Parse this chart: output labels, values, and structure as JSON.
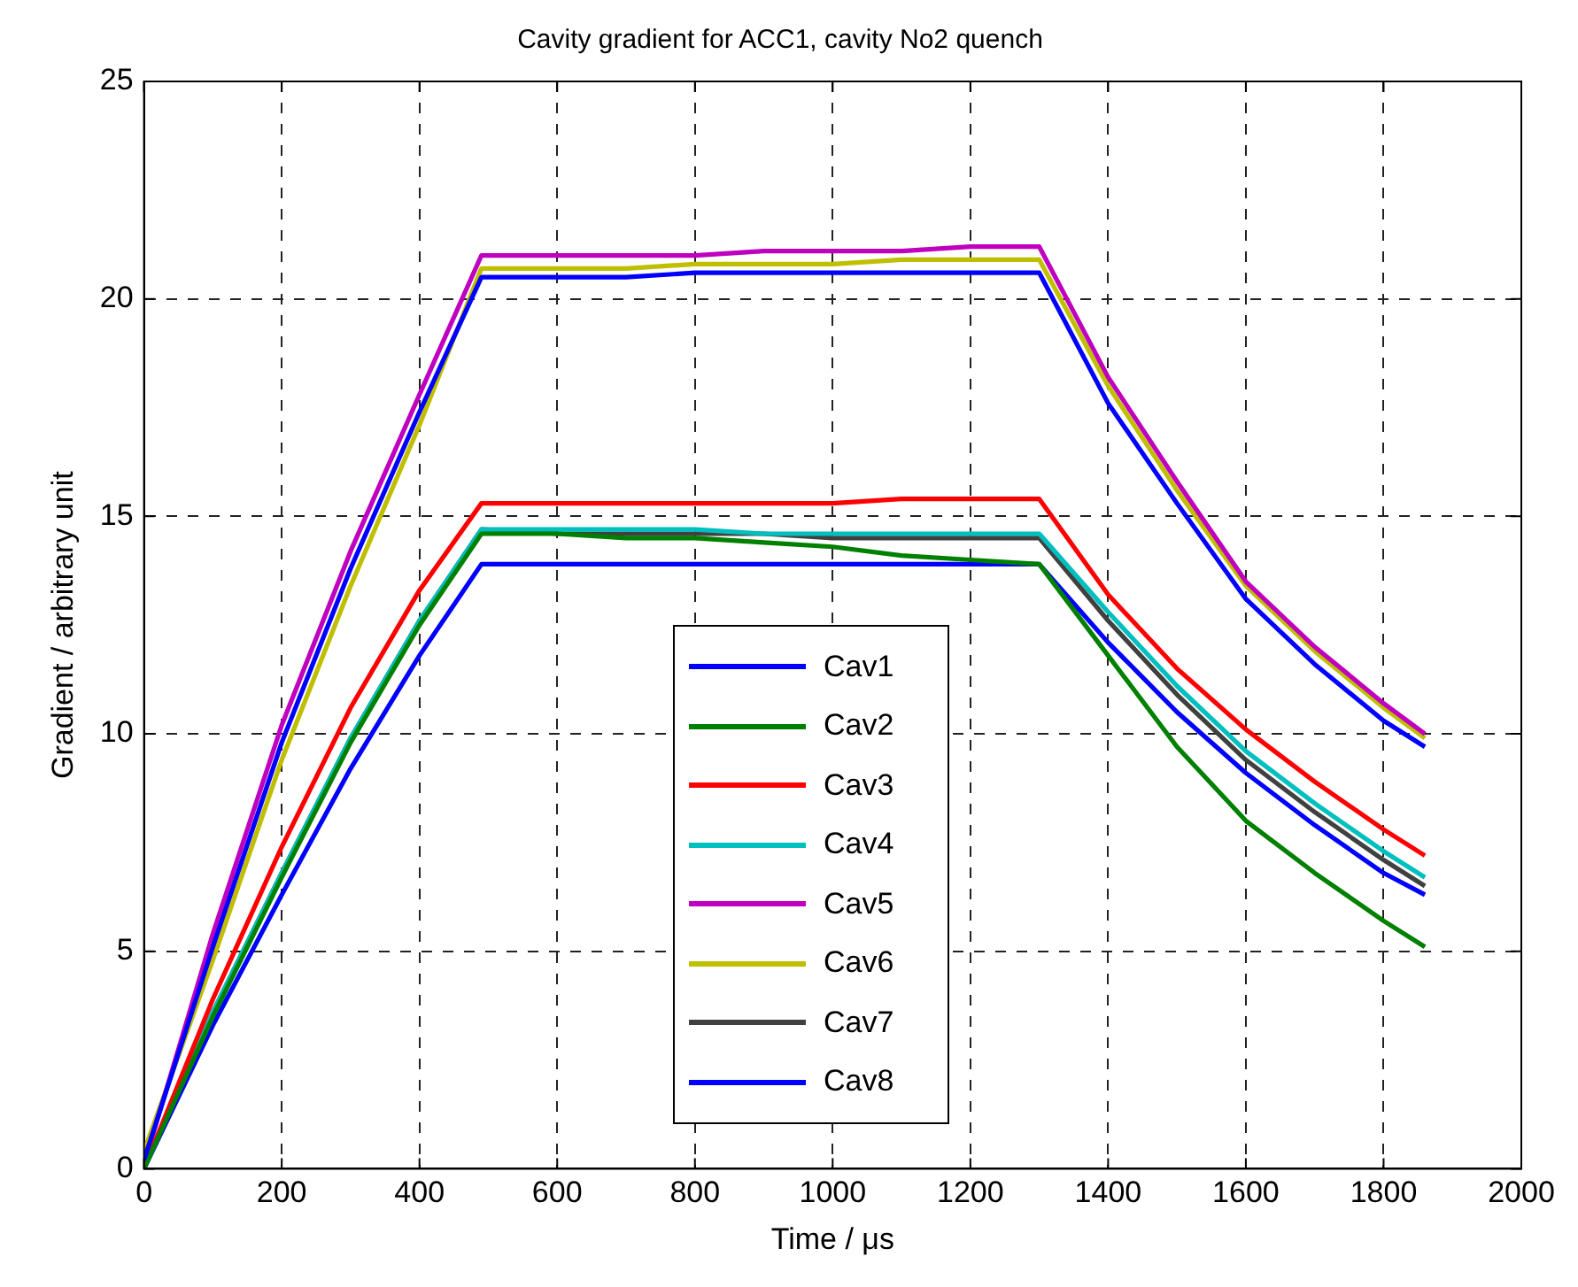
{
  "chart_data": {
    "type": "line",
    "title": "Cavity gradient for ACC1, cavity No2 quench",
    "xlabel": "Time / μs",
    "ylabel": "Gradient / arbitrary unit",
    "x": [
      0,
      100,
      200,
      300,
      400,
      490,
      600,
      700,
      800,
      900,
      1000,
      1100,
      1200,
      1300,
      1400,
      1500,
      1600,
      1700,
      1800,
      1860
    ],
    "xlim": [
      0,
      2000
    ],
    "xticks": [
      0,
      200,
      400,
      600,
      800,
      1000,
      1200,
      1400,
      1600,
      1800,
      2000
    ],
    "ylim": [
      0,
      25
    ],
    "yticks": [
      0,
      5,
      10,
      15,
      20,
      25
    ],
    "grid": true,
    "legend": "bottom",
    "marker": "none",
    "line_style": "solid",
    "series": [
      {
        "name": "Cav1",
        "color": "#0000ff",
        "values": [
          0.2,
          5.1,
          9.8,
          13.8,
          17.4,
          20.5,
          20.5,
          20.5,
          20.6,
          20.6,
          20.6,
          20.6,
          20.6,
          20.6,
          17.6,
          15.3,
          13.1,
          11.6,
          10.3,
          9.7
        ]
      },
      {
        "name": "Cav2",
        "color": "#008000",
        "values": [
          0,
          3.5,
          6.7,
          9.8,
          12.5,
          14.6,
          14.6,
          14.5,
          14.5,
          14.4,
          14.3,
          14.1,
          14.0,
          13.9,
          11.8,
          9.7,
          8.0,
          6.8,
          5.7,
          5.1
        ]
      },
      {
        "name": "Cav3",
        "color": "#ff0000",
        "values": [
          0,
          3.9,
          7.4,
          10.6,
          13.3,
          15.3,
          15.3,
          15.3,
          15.3,
          15.3,
          15.3,
          15.4,
          15.4,
          15.4,
          13.2,
          11.5,
          10.1,
          8.9,
          7.8,
          7.2
        ]
      },
      {
        "name": "Cav4",
        "color": "#00bfbf",
        "values": [
          0,
          3.6,
          6.8,
          9.9,
          12.6,
          14.7,
          14.7,
          14.7,
          14.7,
          14.6,
          14.6,
          14.6,
          14.6,
          14.6,
          12.8,
          11.1,
          9.6,
          8.4,
          7.3,
          6.7
        ]
      },
      {
        "name": "Cav5",
        "color": "#bf00bf",
        "values": [
          0.1,
          5.4,
          10.2,
          14.2,
          17.8,
          21.0,
          21.0,
          21.0,
          21.0,
          21.1,
          21.1,
          21.1,
          21.2,
          21.2,
          18.2,
          15.8,
          13.5,
          12.0,
          10.7,
          10.0
        ]
      },
      {
        "name": "Cav6",
        "color": "#bfbf00",
        "values": [
          0.4,
          4.8,
          9.4,
          13.4,
          17.1,
          20.7,
          20.7,
          20.7,
          20.8,
          20.8,
          20.8,
          20.9,
          20.9,
          20.9,
          18.0,
          15.6,
          13.4,
          11.9,
          10.6,
          9.9
        ]
      },
      {
        "name": "Cav7",
        "color": "#404040",
        "values": [
          0,
          3.6,
          6.8,
          9.9,
          12.6,
          14.7,
          14.6,
          14.6,
          14.6,
          14.6,
          14.5,
          14.5,
          14.5,
          14.5,
          12.6,
          10.9,
          9.4,
          8.2,
          7.1,
          6.5
        ]
      },
      {
        "name": "Cav8",
        "color": "#0000ff",
        "values": [
          0,
          3.3,
          6.3,
          9.2,
          11.8,
          13.9,
          13.9,
          13.9,
          13.9,
          13.9,
          13.9,
          13.9,
          13.9,
          13.9,
          12.1,
          10.5,
          9.1,
          7.9,
          6.8,
          6.3
        ]
      }
    ]
  }
}
